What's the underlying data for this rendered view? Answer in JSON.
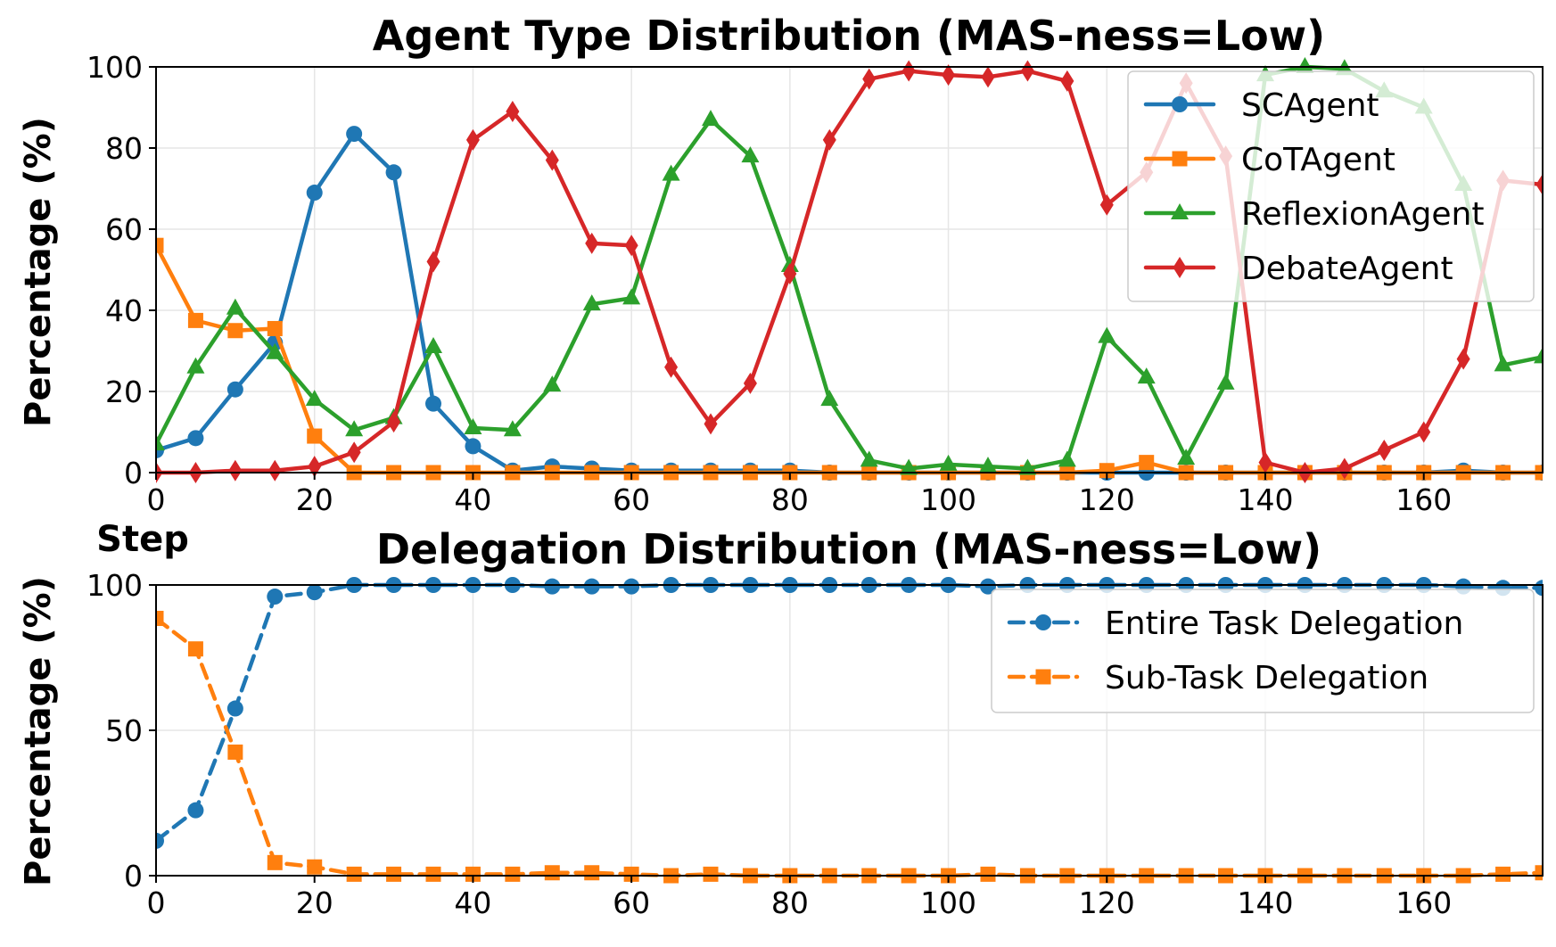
{
  "chart_data": [
    {
      "type": "line",
      "title": "Agent Type Distribution (MAS-ness=Low)",
      "xlabel": "Step",
      "ylabel": "Percentage (%)",
      "xlim": [
        0,
        175
      ],
      "ylim": [
        0,
        100
      ],
      "xticks": [
        0,
        20,
        40,
        60,
        80,
        100,
        120,
        140,
        160
      ],
      "yticks": [
        0,
        20,
        40,
        60,
        80,
        100
      ],
      "grid": true,
      "legend_position": "top-right",
      "x": [
        0,
        5,
        10,
        15,
        20,
        25,
        30,
        35,
        40,
        45,
        50,
        55,
        60,
        65,
        70,
        75,
        80,
        85,
        90,
        95,
        100,
        105,
        110,
        115,
        120,
        125,
        130,
        135,
        140,
        145,
        150,
        155,
        160,
        165,
        170,
        175
      ],
      "series": [
        {
          "name": "SCAgent",
          "color": "#1f77b4",
          "marker": "circle",
          "dashed": false,
          "values": [
            5.5,
            8.5,
            20.5,
            32,
            69,
            83.5,
            74,
            17,
            6.5,
            0.5,
            1.5,
            1,
            0.5,
            0.5,
            0.5,
            0.5,
            0.5,
            0,
            0,
            0,
            0,
            0,
            0,
            0,
            0,
            0,
            0,
            0,
            0,
            0,
            0,
            0,
            0,
            0.5,
            0,
            0
          ]
        },
        {
          "name": "CoTAgent",
          "color": "#ff7f0e",
          "marker": "square",
          "dashed": false,
          "values": [
            56,
            37.5,
            35,
            35.5,
            9,
            0,
            0,
            0,
            0,
            0,
            0,
            0,
            0,
            0,
            0,
            0,
            0,
            0,
            0,
            0,
            0,
            0,
            0,
            0,
            0.5,
            2.5,
            0,
            0,
            0,
            0,
            0,
            0,
            0,
            0,
            0,
            0
          ]
        },
        {
          "name": "ReflexionAgent",
          "color": "#2ca02c",
          "marker": "triangle",
          "dashed": false,
          "values": [
            7,
            26,
            40.5,
            29.5,
            18,
            10.5,
            13.5,
            31,
            11,
            10.5,
            21.5,
            41.5,
            43,
            73.5,
            87,
            78,
            51,
            18,
            3,
            1,
            2,
            1.5,
            1,
            3,
            33.5,
            23.5,
            3.5,
            22,
            98,
            100,
            99.5,
            94,
            90,
            71,
            26.5,
            28.5
          ]
        },
        {
          "name": "DebateAgent",
          "color": "#d62728",
          "marker": "diamond",
          "dashed": false,
          "values": [
            0,
            0,
            0.5,
            0.5,
            1.5,
            5,
            12.5,
            52,
            82,
            89,
            77,
            56.5,
            56,
            26,
            12,
            22,
            49,
            82,
            97,
            99,
            98,
            97.5,
            99,
            96.5,
            66,
            74,
            96,
            78,
            2.5,
            0,
            1,
            5.5,
            10,
            28,
            72,
            71
          ]
        }
      ]
    },
    {
      "type": "line",
      "title": "Delegation Distribution (MAS-ness=Low)",
      "xlabel": "",
      "ylabel": "Percentage (%)",
      "xlim": [
        0,
        175
      ],
      "ylim": [
        0,
        100
      ],
      "xticks": [
        0,
        20,
        40,
        60,
        80,
        100,
        120,
        140,
        160
      ],
      "yticks": [
        0,
        50,
        100
      ],
      "grid": true,
      "legend_position": "top-right",
      "x": [
        0,
        5,
        10,
        15,
        20,
        25,
        30,
        35,
        40,
        45,
        50,
        55,
        60,
        65,
        70,
        75,
        80,
        85,
        90,
        95,
        100,
        105,
        110,
        115,
        120,
        125,
        130,
        135,
        140,
        145,
        150,
        155,
        160,
        165,
        170,
        175
      ],
      "series": [
        {
          "name": "Entire Task Delegation",
          "color": "#1f77b4",
          "marker": "circle",
          "dashed": true,
          "values": [
            12,
            22.5,
            57.5,
            96,
            97.5,
            100,
            100,
            100,
            100,
            100,
            99.5,
            99.5,
            99.5,
            100,
            100,
            100,
            100,
            100,
            100,
            100,
            100,
            99.5,
            100,
            100,
            100,
            100,
            100,
            100,
            100,
            100,
            100,
            100,
            100,
            99.5,
            99,
            99
          ]
        },
        {
          "name": "Sub-Task Delegation",
          "color": "#ff7f0e",
          "marker": "square",
          "dashed": true,
          "values": [
            88.5,
            78,
            42.5,
            4.5,
            3,
            0.5,
            0.5,
            0.5,
            0.5,
            0.5,
            1,
            1,
            0.5,
            0,
            0.5,
            0,
            0,
            0,
            0,
            0,
            0,
            0.5,
            0,
            0,
            0,
            0,
            0,
            0,
            0,
            0,
            0,
            0,
            0,
            0,
            0.5,
            1
          ]
        }
      ]
    }
  ]
}
